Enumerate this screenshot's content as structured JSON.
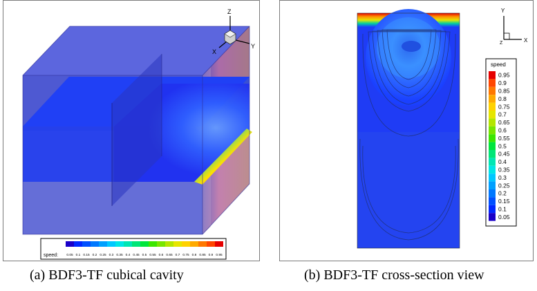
{
  "figure_a": {
    "caption": "(a) BDF3-TF cubical cavity",
    "axes": {
      "z": "Z",
      "y": "Y",
      "x": "X"
    },
    "legend": {
      "title": "speed:",
      "orientation": "horizontal",
      "labels": [
        "0.05",
        "0.1",
        "0.15",
        "0.2",
        "0.25",
        "0.3",
        "0.35",
        "0.4",
        "0.45",
        "0.5",
        "0.55",
        "0.6",
        "0.65",
        "0.7",
        "0.75",
        "0.8",
        "0.85",
        "0.9",
        "0.95"
      ]
    }
  },
  "figure_b": {
    "caption": "(b) BDF3-TF cross-section view",
    "axes": {
      "y": "Y",
      "z": "Z",
      "x": "X"
    },
    "legend": {
      "title": "speed",
      "orientation": "vertical",
      "labels": [
        "0.95",
        "0.9",
        "0.85",
        "0.8",
        "0.75",
        "0.7",
        "0.65",
        "0.6",
        "0.55",
        "0.5",
        "0.45",
        "0.4",
        "0.35",
        "0.3",
        "0.25",
        "0.2",
        "0.15",
        "0.1",
        "0.05"
      ]
    }
  },
  "colormap": [
    "#1a00c8",
    "#0028ff",
    "#0050ff",
    "#0078ff",
    "#00a0ff",
    "#00c8ff",
    "#00e6e6",
    "#00e6b4",
    "#00e678",
    "#00e63c",
    "#3ce600",
    "#78e600",
    "#b4e600",
    "#e6e600",
    "#ffd200",
    "#ffaa00",
    "#ff7800",
    "#ff4600",
    "#e60000"
  ]
}
